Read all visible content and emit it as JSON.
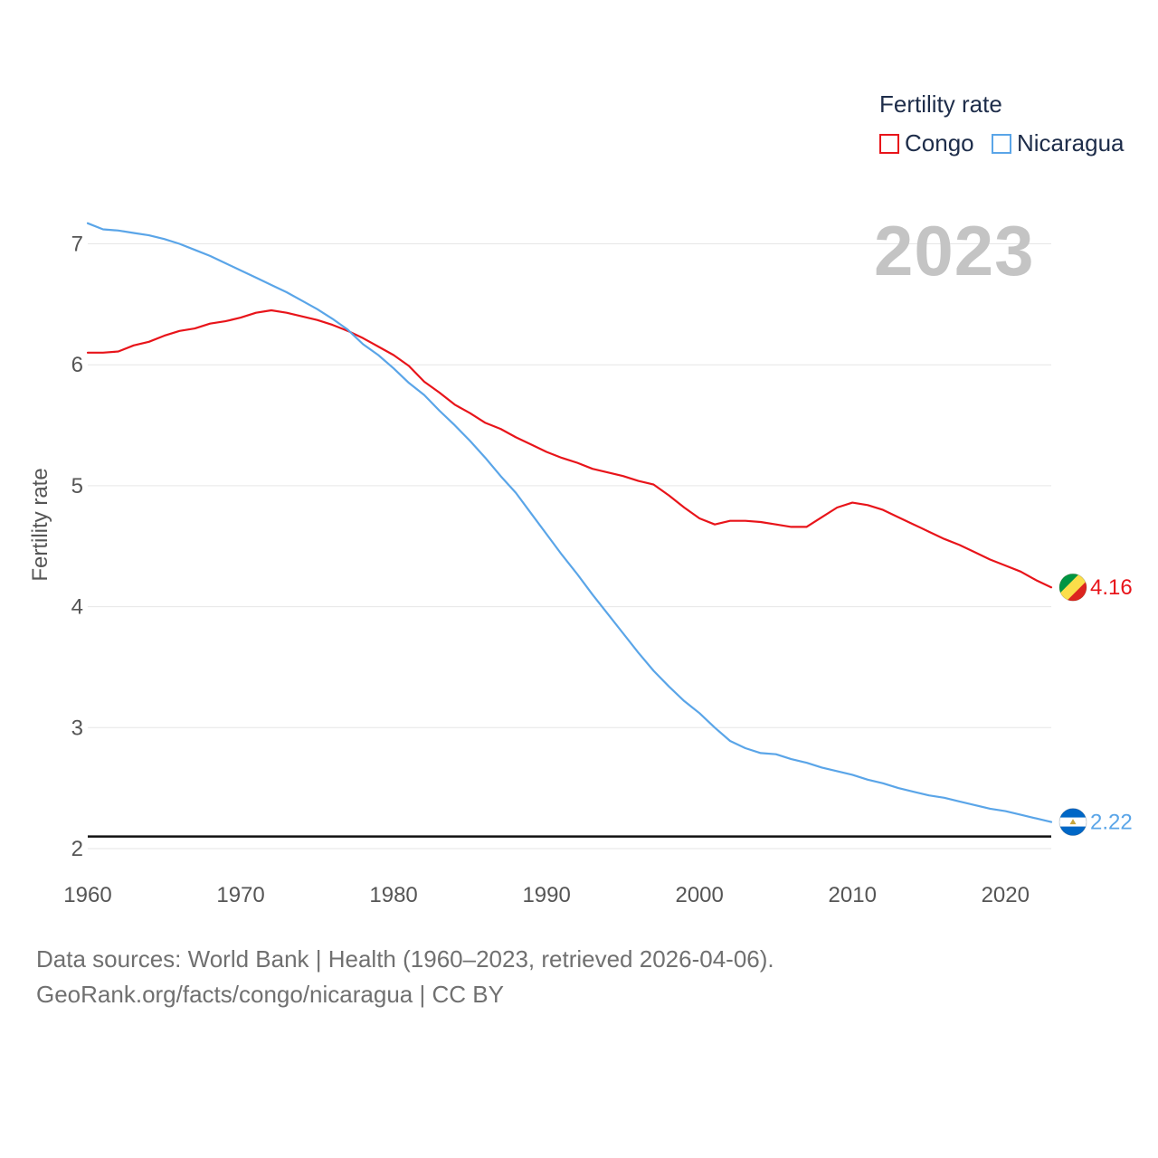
{
  "colors": {
    "congo": "#e8141a",
    "nicaragua": "#5aa5e8",
    "grid": "#e6e6e6",
    "axis_text": "#555555",
    "year": "#c4c4c4"
  },
  "legend": {
    "title": "Fertility rate",
    "items": [
      "Congo",
      "Nicaragua"
    ]
  },
  "year_display": "2023",
  "footer": {
    "line1": "Data sources: World Bank | Health (1960–2023, retrieved 2026-04-06).",
    "line2": "GeoRank.org/facts/congo/nicaragua | CC BY"
  },
  "chart_data": {
    "type": "line",
    "title": "Fertility rate",
    "xlabel": "",
    "ylabel": "Fertility rate",
    "xlim": [
      1960,
      2023
    ],
    "ylim": [
      2,
      7.3
    ],
    "xticks": [
      1960,
      1970,
      1980,
      1990,
      2000,
      2010,
      2020
    ],
    "yticks": [
      2,
      3,
      4,
      5,
      6,
      7
    ],
    "reference_line": 2.1,
    "x": [
      1960,
      1961,
      1962,
      1963,
      1964,
      1965,
      1966,
      1967,
      1968,
      1969,
      1970,
      1971,
      1972,
      1973,
      1974,
      1975,
      1976,
      1977,
      1978,
      1979,
      1980,
      1981,
      1982,
      1983,
      1984,
      1985,
      1986,
      1987,
      1988,
      1989,
      1990,
      1991,
      1992,
      1993,
      1994,
      1995,
      1996,
      1997,
      1998,
      1999,
      2000,
      2001,
      2002,
      2003,
      2004,
      2005,
      2006,
      2007,
      2008,
      2009,
      2010,
      2011,
      2012,
      2013,
      2014,
      2015,
      2016,
      2017,
      2018,
      2019,
      2020,
      2021,
      2022,
      2023
    ],
    "series": [
      {
        "name": "Congo",
        "end_label": "4.16",
        "values": [
          6.1,
          6.1,
          6.11,
          6.16,
          6.19,
          6.24,
          6.28,
          6.3,
          6.34,
          6.36,
          6.39,
          6.43,
          6.45,
          6.43,
          6.4,
          6.37,
          6.33,
          6.28,
          6.22,
          6.15,
          6.08,
          5.99,
          5.86,
          5.77,
          5.67,
          5.6,
          5.52,
          5.47,
          5.4,
          5.34,
          5.28,
          5.23,
          5.19,
          5.14,
          5.11,
          5.08,
          5.04,
          5.01,
          4.92,
          4.82,
          4.73,
          4.68,
          4.71,
          4.71,
          4.7,
          4.68,
          4.66,
          4.66,
          4.74,
          4.82,
          4.86,
          4.84,
          4.8,
          4.74,
          4.68,
          4.62,
          4.56,
          4.51,
          4.45,
          4.39,
          4.34,
          4.29,
          4.22,
          4.16
        ]
      },
      {
        "name": "Nicaragua",
        "end_label": "2.22",
        "values": [
          7.17,
          7.12,
          7.11,
          7.09,
          7.07,
          7.04,
          7.0,
          6.95,
          6.9,
          6.84,
          6.78,
          6.72,
          6.66,
          6.6,
          6.53,
          6.46,
          6.38,
          6.29,
          6.17,
          6.08,
          5.97,
          5.85,
          5.75,
          5.62,
          5.5,
          5.37,
          5.23,
          5.08,
          4.94,
          4.77,
          4.6,
          4.43,
          4.27,
          4.1,
          3.94,
          3.78,
          3.62,
          3.47,
          3.34,
          3.22,
          3.12,
          3.0,
          2.89,
          2.83,
          2.79,
          2.78,
          2.74,
          2.71,
          2.67,
          2.64,
          2.61,
          2.57,
          2.54,
          2.5,
          2.47,
          2.44,
          2.42,
          2.39,
          2.36,
          2.33,
          2.31,
          2.28,
          2.25,
          2.22
        ]
      }
    ]
  }
}
